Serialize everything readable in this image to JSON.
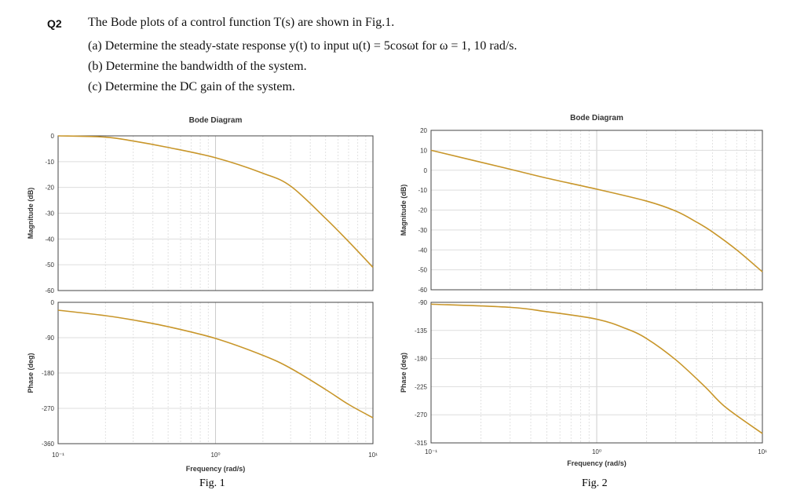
{
  "question": {
    "number": "Q2",
    "intro": "The Bode plots of a control function T(s) are shown in Fig.1.",
    "parts": [
      "(a)  Determine the steady-state response y(t) to input u(t) = 5cosωt for ω = 1,  10 rad/s.",
      "(b)  Determine the bandwidth of the system.",
      "(c)  Determine the DC gain of the system."
    ]
  },
  "chart_data": [
    {
      "type": "line",
      "title": "Bode Diagram",
      "caption": "Fig. 1",
      "xlabel": "Frequency  (rad/s)",
      "xscale": "log",
      "xlim": [
        0.1,
        10
      ],
      "xticks": [
        "10⁻¹",
        "10⁰",
        "10¹"
      ],
      "grid": true,
      "color": "#c8962a",
      "magnitude": {
        "ylabel": "Magnitude (dB)",
        "ylim": [
          -60,
          0
        ],
        "yticks": [
          0,
          -10,
          -20,
          -30,
          -40,
          -50,
          -60
        ],
        "x": [
          0.1,
          0.2,
          0.3,
          0.5,
          1,
          2,
          3,
          5,
          7,
          10
        ],
        "y": [
          0,
          -0.5,
          -2,
          -4.5,
          -8.5,
          -14.5,
          -19.5,
          -32,
          -41,
          -51
        ]
      },
      "phase": {
        "ylabel": "Phase (deg)",
        "ylim": [
          -360,
          0
        ],
        "yticks": [
          0,
          -90,
          -180,
          -270,
          -360
        ],
        "x": [
          0.1,
          0.2,
          0.3,
          0.5,
          1,
          2,
          3,
          5,
          7,
          10
        ],
        "y": [
          -20,
          -34,
          -45,
          -62,
          -92,
          -135,
          -168,
          -222,
          -260,
          -294
        ]
      }
    },
    {
      "type": "line",
      "title": "Bode Diagram",
      "caption": "Fig. 2",
      "xlabel": "Frequency  (rad/s)",
      "xscale": "log",
      "xlim": [
        0.1,
        10
      ],
      "xticks": [
        "10⁻¹",
        "10⁰",
        "10¹"
      ],
      "grid": true,
      "color": "#c8962a",
      "magnitude": {
        "ylabel": "Magnitude (dB)",
        "ylim": [
          -60,
          20
        ],
        "yticks": [
          20,
          10,
          0,
          -10,
          -20,
          -30,
          -40,
          -50,
          -60
        ],
        "x": [
          0.1,
          0.3,
          0.5,
          1,
          2,
          3,
          4,
          5,
          7,
          10
        ],
        "y": [
          10,
          0.5,
          -4,
          -9.5,
          -15.5,
          -20.5,
          -26,
          -31,
          -40,
          -51
        ]
      },
      "phase": {
        "ylabel": "Phase (deg)",
        "ylim": [
          -315,
          -90
        ],
        "yticks": [
          -90,
          -135,
          -180,
          -225,
          -270,
          -315
        ],
        "x": [
          0.1,
          0.3,
          0.5,
          1,
          1.5,
          2,
          3,
          4.5,
          6,
          10
        ],
        "y": [
          -93,
          -98,
          -105,
          -117,
          -132,
          -148,
          -182,
          -225,
          -258,
          -300
        ]
      }
    }
  ]
}
